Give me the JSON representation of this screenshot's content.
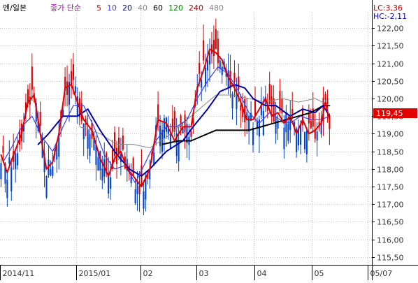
{
  "chart_data": {
    "type": "candlestick",
    "title": "엔/일본",
    "legend": {
      "label": "종가 단순",
      "ma_periods": [
        {
          "label": "5",
          "color": "#e00000"
        },
        {
          "label": "10",
          "color": "#4040ff"
        },
        {
          "label": "20",
          "color": "#0000a0"
        },
        {
          "label": "40",
          "color": "#888888"
        },
        {
          "label": "60",
          "color": "#000000"
        },
        {
          "label": "120",
          "color": "#008000"
        },
        {
          "label": "240",
          "color": "#c00000"
        },
        {
          "label": "480",
          "color": "#888888"
        }
      ]
    },
    "info": {
      "lc": "LC:3,36",
      "hc": "HC:-2,11"
    },
    "last_price": {
      "label": "119,45",
      "value": 119.45
    },
    "y_axis": {
      "ylim": [
        115.28,
        122.44
      ],
      "ticks": [
        115.5,
        116.0,
        116.5,
        117.0,
        117.5,
        118.0,
        118.5,
        119.0,
        119.5,
        120.0,
        120.5,
        121.0,
        121.5,
        122.0
      ],
      "tick_labels": [
        "115,50",
        "116,00",
        "116,50",
        "117,00",
        "117,50",
        "118,00",
        "118,50",
        "119,00",
        "119,50",
        "120,00",
        "120,50",
        "121,00",
        "121,50",
        "122,00"
      ]
    },
    "x_axis": {
      "labels": [
        {
          "label": "2014/11",
          "index": 0
        },
        {
          "label": "2015/01",
          "index": 37
        },
        {
          "label": "02",
          "index": 68
        },
        {
          "label": "03",
          "index": 95
        },
        {
          "label": "04",
          "index": 123
        },
        {
          "label": "05",
          "index": 151
        },
        {
          "label": "05/07",
          "index": 178
        }
      ],
      "total_slots": 180
    },
    "candle_colors": {
      "up": "#dd0000",
      "down": "#0044cc"
    },
    "series": [
      {
        "name": "5",
        "color": "#e00000",
        "values": [
          [
            0,
            118.4
          ],
          [
            3,
            117.9
          ],
          [
            6,
            118.4
          ],
          [
            10,
            119.0
          ],
          [
            13,
            119.9
          ],
          [
            16,
            120.1
          ],
          [
            19,
            119.0
          ],
          [
            22,
            118.0
          ],
          [
            25,
            118.2
          ],
          [
            28,
            119.0
          ],
          [
            31,
            120.3
          ],
          [
            34,
            120.4
          ],
          [
            37,
            119.9
          ],
          [
            40,
            119.4
          ],
          [
            44,
            119.1
          ],
          [
            48,
            118.3
          ],
          [
            52,
            117.8
          ],
          [
            55,
            118.3
          ],
          [
            58,
            118.5
          ],
          [
            61,
            118.0
          ],
          [
            64,
            117.8
          ],
          [
            68,
            117.5
          ],
          [
            72,
            118.0
          ],
          [
            76,
            119.4
          ],
          [
            80,
            119.3
          ],
          [
            84,
            118.8
          ],
          [
            88,
            119.2
          ],
          [
            92,
            119.2
          ],
          [
            95,
            120.3
          ],
          [
            98,
            120.8
          ],
          [
            101,
            121.4
          ],
          [
            104,
            121.3
          ],
          [
            107,
            121.1
          ],
          [
            110,
            120.6
          ],
          [
            113,
            120.3
          ],
          [
            116,
            119.9
          ],
          [
            119,
            119.4
          ],
          [
            122,
            119.4
          ],
          [
            125,
            119.7
          ],
          [
            128,
            120.0
          ],
          [
            131,
            119.5
          ],
          [
            134,
            119.6
          ],
          [
            137,
            119.3
          ],
          [
            140,
            119.5
          ],
          [
            143,
            119.0
          ],
          [
            146,
            119.4
          ],
          [
            149,
            119.0
          ],
          [
            152,
            119.1
          ],
          [
            155,
            119.3
          ],
          [
            157,
            119.9
          ],
          [
            159,
            119.4
          ]
        ]
      },
      {
        "name": "10",
        "color": "#3a3aff",
        "values": [
          [
            1,
            118.2
          ],
          [
            5,
            118.6
          ],
          [
            10,
            119.2
          ],
          [
            15,
            119.5
          ],
          [
            20,
            118.9
          ],
          [
            25,
            118.5
          ],
          [
            30,
            119.2
          ],
          [
            35,
            119.8
          ],
          [
            40,
            119.8
          ],
          [
            45,
            119.2
          ],
          [
            50,
            118.4
          ],
          [
            55,
            118.0
          ],
          [
            60,
            118.1
          ],
          [
            65,
            117.6
          ],
          [
            70,
            118.2
          ],
          [
            75,
            118.8
          ],
          [
            80,
            119.2
          ],
          [
            85,
            119.2
          ],
          [
            90,
            119.4
          ],
          [
            95,
            120.0
          ],
          [
            100,
            120.5
          ],
          [
            105,
            120.9
          ],
          [
            110,
            120.7
          ],
          [
            115,
            120.2
          ],
          [
            120,
            119.6
          ],
          [
            125,
            119.3
          ],
          [
            130,
            119.6
          ],
          [
            135,
            119.4
          ],
          [
            140,
            119.3
          ],
          [
            145,
            119.5
          ],
          [
            150,
            119.4
          ],
          [
            155,
            119.4
          ],
          [
            159,
            119.5
          ]
        ]
      },
      {
        "name": "20",
        "color": "#0000aa",
        "values": [
          [
            18,
            118.7
          ],
          [
            23,
            119.0
          ],
          [
            30,
            119.5
          ],
          [
            37,
            119.5
          ],
          [
            42,
            119.7
          ],
          [
            48,
            119.1
          ],
          [
            55,
            118.5
          ],
          [
            62,
            118.0
          ],
          [
            68,
            117.8
          ],
          [
            72,
            118.0
          ],
          [
            80,
            118.5
          ],
          [
            88,
            118.8
          ],
          [
            93,
            119.2
          ],
          [
            100,
            119.7
          ],
          [
            106,
            120.2
          ],
          [
            110,
            120.3
          ],
          [
            113,
            120.4
          ],
          [
            118,
            120.3
          ],
          [
            122,
            120.0
          ],
          [
            128,
            119.8
          ],
          [
            133,
            119.8
          ],
          [
            140,
            119.5
          ],
          [
            146,
            119.7
          ],
          [
            152,
            119.6
          ],
          [
            156,
            119.8
          ],
          [
            159,
            119.5
          ]
        ]
      },
      {
        "name": "40",
        "color": "#888888",
        "values": [
          [
            38,
            119.2
          ],
          [
            48,
            119.0
          ],
          [
            56,
            118.7
          ],
          [
            64,
            118.7
          ],
          [
            72,
            118.6
          ],
          [
            80,
            118.9
          ],
          [
            88,
            119.3
          ],
          [
            96,
            119.7
          ],
          [
            104,
            120.1
          ],
          [
            112,
            120.1
          ],
          [
            120,
            120.0
          ],
          [
            128,
            119.9
          ],
          [
            136,
            120.0
          ],
          [
            144,
            119.9
          ],
          [
            152,
            120.0
          ],
          [
            159,
            119.8
          ]
        ]
      },
      {
        "name": "60",
        "color": "#000000",
        "values": [
          [
            78,
            118.7
          ],
          [
            86,
            118.8
          ],
          [
            92,
            118.8
          ],
          [
            96,
            118.9
          ],
          [
            100,
            119.0
          ],
          [
            104,
            119.1
          ],
          [
            108,
            119.1
          ],
          [
            112,
            119.1
          ],
          [
            116,
            119.1
          ],
          [
            120,
            119.1
          ],
          [
            126,
            119.2
          ],
          [
            132,
            119.3
          ],
          [
            138,
            119.4
          ],
          [
            144,
            119.5
          ],
          [
            150,
            119.6
          ],
          [
            156,
            119.8
          ],
          [
            159,
            119.8
          ]
        ]
      }
    ]
  }
}
